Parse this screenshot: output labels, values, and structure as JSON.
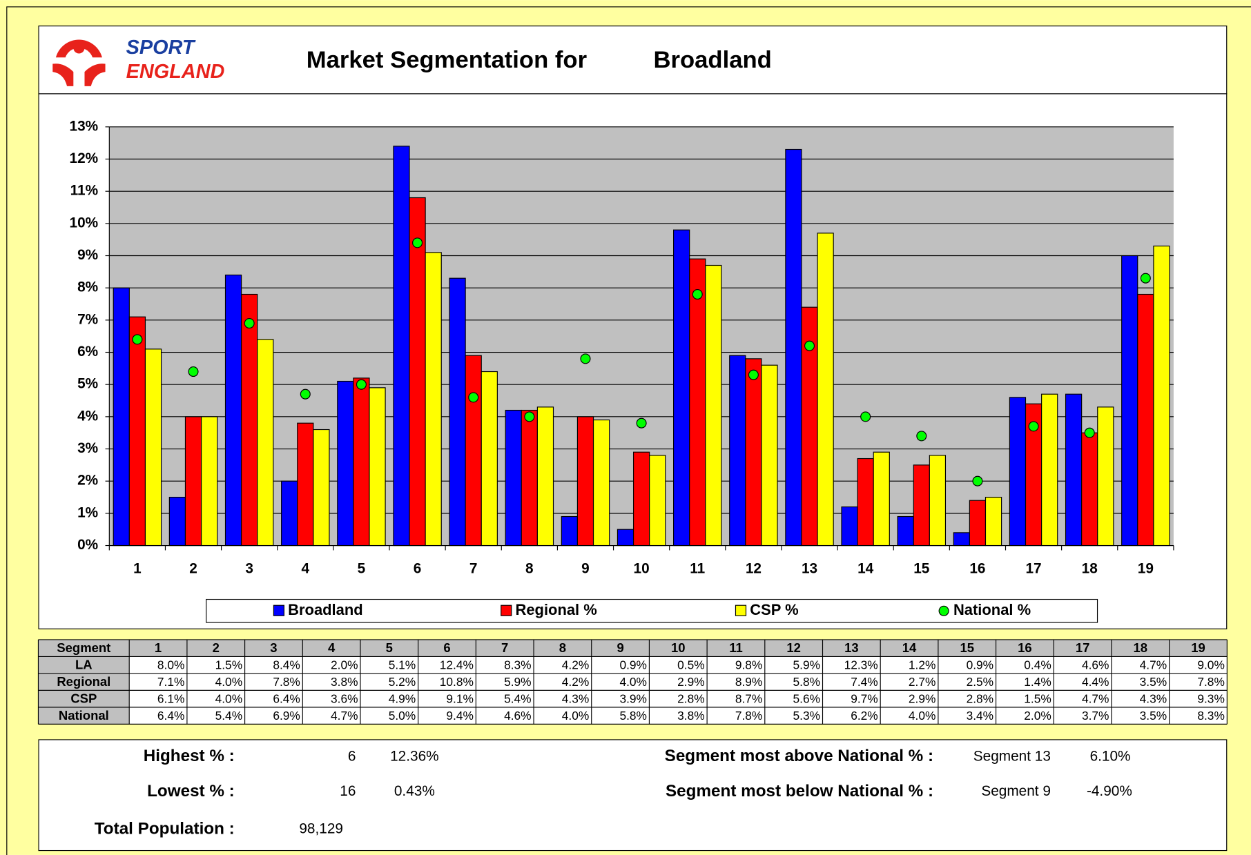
{
  "header": {
    "logo_top": "SPORT",
    "logo_bottom": "ENGLAND",
    "title": "Market Segmentation for",
    "area": "Broadland"
  },
  "chart_data": {
    "type": "bar",
    "categories": [
      "1",
      "2",
      "3",
      "4",
      "5",
      "6",
      "7",
      "8",
      "9",
      "10",
      "11",
      "12",
      "13",
      "14",
      "15",
      "16",
      "17",
      "18",
      "19"
    ],
    "ylim": [
      0,
      13
    ],
    "yticks": [
      {
        "value": 0,
        "label": "0%"
      },
      {
        "value": 1,
        "label": "1%"
      },
      {
        "value": 2,
        "label": "2%"
      },
      {
        "value": 3,
        "label": "3%"
      },
      {
        "value": 4,
        "label": "4%"
      },
      {
        "value": 5,
        "label": "5%"
      },
      {
        "value": 6,
        "label": "6%"
      },
      {
        "value": 7,
        "label": "7%"
      },
      {
        "value": 8,
        "label": "8%"
      },
      {
        "value": 9,
        "label": "9%"
      },
      {
        "value": 10,
        "label": "10%"
      },
      {
        "value": 11,
        "label": "11%"
      },
      {
        "value": 12,
        "label": "12%"
      },
      {
        "value": 13,
        "label": "13%"
      }
    ],
    "grid": true,
    "series": [
      {
        "name": "Broadland",
        "color": "#0000ff",
        "mark": "bar",
        "values": [
          8.0,
          1.5,
          8.4,
          2.0,
          5.1,
          12.4,
          8.3,
          4.2,
          0.9,
          0.5,
          9.8,
          5.9,
          12.3,
          1.2,
          0.9,
          0.4,
          4.6,
          4.7,
          9.0
        ],
        "value_labels": [
          "8.0%",
          "1.5%",
          "8.4%",
          "2.0%",
          "5.1%",
          "12.4%",
          "8.3%",
          "4.2%",
          "0.9%",
          "0.5%",
          "9.8%",
          "5.9%",
          "12.3%",
          "1.2%",
          "0.9%",
          "0.4%",
          "4.6%",
          "4.7%",
          "9.0%"
        ]
      },
      {
        "name": "Regional %",
        "color": "#ff0000",
        "mark": "bar",
        "values": [
          7.1,
          4.0,
          7.8,
          3.8,
          5.2,
          10.8,
          5.9,
          4.2,
          4.0,
          2.9,
          8.9,
          5.8,
          7.4,
          2.7,
          2.5,
          1.4,
          4.4,
          3.5,
          7.8
        ],
        "value_labels": [
          "7.1%",
          "4.0%",
          "7.8%",
          "3.8%",
          "5.2%",
          "10.8%",
          "5.9%",
          "4.2%",
          "4.0%",
          "2.9%",
          "8.9%",
          "5.8%",
          "7.4%",
          "2.7%",
          "2.5%",
          "1.4%",
          "4.4%",
          "3.5%",
          "7.8%"
        ]
      },
      {
        "name": "CSP %",
        "color": "#ffff00",
        "mark": "bar",
        "values": [
          6.1,
          4.0,
          6.4,
          3.6,
          4.9,
          9.1,
          5.4,
          4.3,
          3.9,
          2.8,
          8.7,
          5.6,
          9.7,
          2.9,
          2.8,
          1.5,
          4.7,
          4.3,
          9.3
        ],
        "value_labels": [
          "6.1%",
          "4.0%",
          "6.4%",
          "3.6%",
          "4.9%",
          "9.1%",
          "5.4%",
          "4.3%",
          "3.9%",
          "2.8%",
          "8.7%",
          "5.6%",
          "9.7%",
          "2.9%",
          "2.8%",
          "1.5%",
          "4.7%",
          "4.3%",
          "9.3%"
        ]
      },
      {
        "name": "National %",
        "color": "#00ff00",
        "mark": "dot",
        "values": [
          6.4,
          5.4,
          6.9,
          4.7,
          5.0,
          9.4,
          4.6,
          4.0,
          5.8,
          3.8,
          7.8,
          5.3,
          6.2,
          4.0,
          3.4,
          2.0,
          3.7,
          3.5,
          8.3
        ],
        "value_labels": [
          "6.4%",
          "5.4%",
          "6.9%",
          "4.7%",
          "5.0%",
          "9.4%",
          "4.6%",
          "4.0%",
          "5.8%",
          "3.8%",
          "7.8%",
          "5.3%",
          "6.2%",
          "4.0%",
          "3.4%",
          "2.0%",
          "3.7%",
          "3.5%",
          "8.3%"
        ]
      }
    ]
  },
  "table": {
    "header": "Segment",
    "row_headers": [
      "LA",
      "Regional",
      "CSP",
      "National"
    ]
  },
  "summary": {
    "highest": {
      "label": "Highest % :",
      "segment": "6",
      "value": "12.36%"
    },
    "lowest": {
      "label": "Lowest % :",
      "segment": "16",
      "value": "0.43%"
    },
    "population": {
      "label": "Total Population :",
      "value": "98,129"
    },
    "above": {
      "label": "Segment most above National % :",
      "segment": "Segment 13",
      "value": "6.10%"
    },
    "below": {
      "label": "Segment most below National % :",
      "segment": "Segment 9",
      "value": "-4.90%"
    }
  }
}
